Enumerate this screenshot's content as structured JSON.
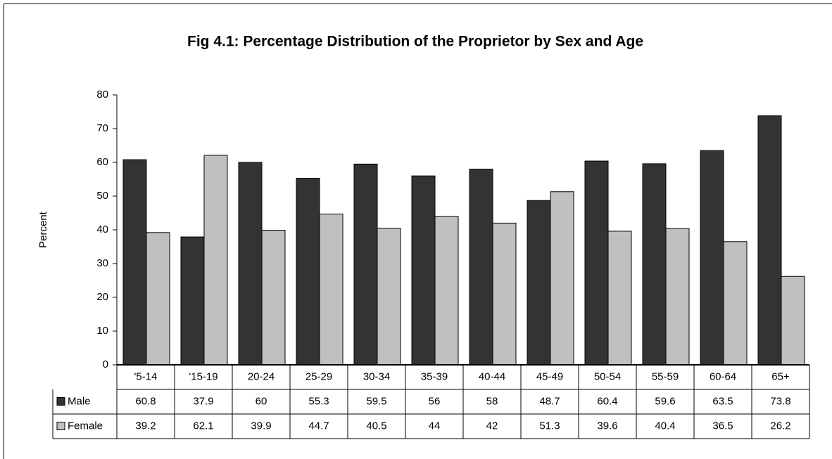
{
  "chart_data": {
    "type": "bar",
    "title": "Fig 4.1:  Percentage Distribution of the Proprietor by Sex and Age",
    "y_label": "Percent",
    "categories": [
      "'5-14",
      "'15-19",
      "20-24",
      "25-29",
      "30-34",
      "35-39",
      "40-44",
      "45-49",
      "50-54",
      "55-59",
      "60-64",
      "65+"
    ],
    "series": [
      {
        "name": "Male",
        "color": "#333333",
        "values": [
          60.8,
          37.9,
          60,
          55.3,
          59.5,
          56,
          58,
          48.7,
          60.4,
          59.6,
          63.5,
          73.8
        ]
      },
      {
        "name": "Female",
        "color": "#c0c0c0",
        "values": [
          39.2,
          62.1,
          39.9,
          44.7,
          40.5,
          44,
          42,
          51.3,
          39.6,
          40.4,
          36.5,
          26.2
        ]
      }
    ],
    "ylim": [
      0,
      80
    ],
    "yticks": [
      0,
      10,
      20,
      30,
      40,
      50,
      60,
      70,
      80
    ],
    "grid": false
  }
}
